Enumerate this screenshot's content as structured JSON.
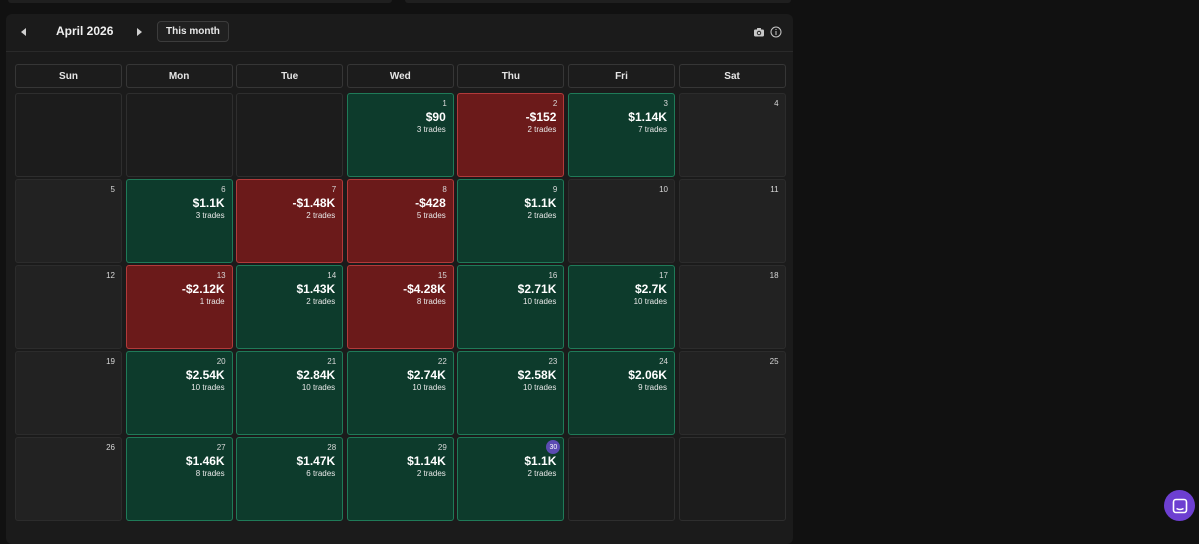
{
  "header": {
    "month_label": "April 2026",
    "this_month_label": "This month",
    "prev_icon": "chevron-left-icon",
    "next_icon": "chevron-right-icon",
    "camera_icon": "camera-icon",
    "info_icon": "info-icon"
  },
  "weekdays": [
    "Sun",
    "Mon",
    "Tue",
    "Wed",
    "Thu",
    "Fri",
    "Sat"
  ],
  "colors": {
    "profit_bg": "#0d3b2c",
    "profit_border": "#1f7a58",
    "loss_bg": "#6b1a1a",
    "loss_border": "#b23a3a",
    "today_badge": "#5b4bb3",
    "chat_button": "#6d3fd1"
  },
  "weeks": [
    [
      {
        "type": "empty"
      },
      {
        "type": "empty"
      },
      {
        "type": "empty"
      },
      {
        "day": "1",
        "pnl": "$90",
        "trades": "3 trades",
        "status": "pos"
      },
      {
        "day": "2",
        "pnl": "-$152",
        "trades": "2 trades",
        "status": "neg"
      },
      {
        "day": "3",
        "pnl": "$1.14K",
        "trades": "7 trades",
        "status": "pos"
      },
      {
        "day": "4",
        "status": "none"
      }
    ],
    [
      {
        "day": "5",
        "status": "none"
      },
      {
        "day": "6",
        "pnl": "$1.1K",
        "trades": "3 trades",
        "status": "pos"
      },
      {
        "day": "7",
        "pnl": "-$1.48K",
        "trades": "2 trades",
        "status": "neg"
      },
      {
        "day": "8",
        "pnl": "-$428",
        "trades": "5 trades",
        "status": "neg"
      },
      {
        "day": "9",
        "pnl": "$1.1K",
        "trades": "2 trades",
        "status": "pos"
      },
      {
        "day": "10",
        "status": "none"
      },
      {
        "day": "11",
        "status": "none"
      }
    ],
    [
      {
        "day": "12",
        "status": "none"
      },
      {
        "day": "13",
        "pnl": "-$2.12K",
        "trades": "1 trade",
        "status": "neg"
      },
      {
        "day": "14",
        "pnl": "$1.43K",
        "trades": "2 trades",
        "status": "pos"
      },
      {
        "day": "15",
        "pnl": "-$4.28K",
        "trades": "8 trades",
        "status": "neg"
      },
      {
        "day": "16",
        "pnl": "$2.71K",
        "trades": "10 trades",
        "status": "pos"
      },
      {
        "day": "17",
        "pnl": "$2.7K",
        "trades": "10 trades",
        "status": "pos"
      },
      {
        "day": "18",
        "status": "none"
      }
    ],
    [
      {
        "day": "19",
        "status": "none"
      },
      {
        "day": "20",
        "pnl": "$2.54K",
        "trades": "10 trades",
        "status": "pos"
      },
      {
        "day": "21",
        "pnl": "$2.84K",
        "trades": "10 trades",
        "status": "pos"
      },
      {
        "day": "22",
        "pnl": "$2.74K",
        "trades": "10 trades",
        "status": "pos"
      },
      {
        "day": "23",
        "pnl": "$2.58K",
        "trades": "10 trades",
        "status": "pos"
      },
      {
        "day": "24",
        "pnl": "$2.06K",
        "trades": "9 trades",
        "status": "pos"
      },
      {
        "day": "25",
        "status": "none"
      }
    ],
    [
      {
        "day": "26",
        "status": "none"
      },
      {
        "day": "27",
        "pnl": "$1.46K",
        "trades": "8 trades",
        "status": "pos"
      },
      {
        "day": "28",
        "pnl": "$1.47K",
        "trades": "6 trades",
        "status": "pos"
      },
      {
        "day": "29",
        "pnl": "$1.14K",
        "trades": "2 trades",
        "status": "pos"
      },
      {
        "day": "30",
        "pnl": "$1.1K",
        "trades": "2 trades",
        "status": "pos",
        "today": true
      },
      {
        "type": "empty"
      },
      {
        "type": "empty"
      }
    ]
  ]
}
